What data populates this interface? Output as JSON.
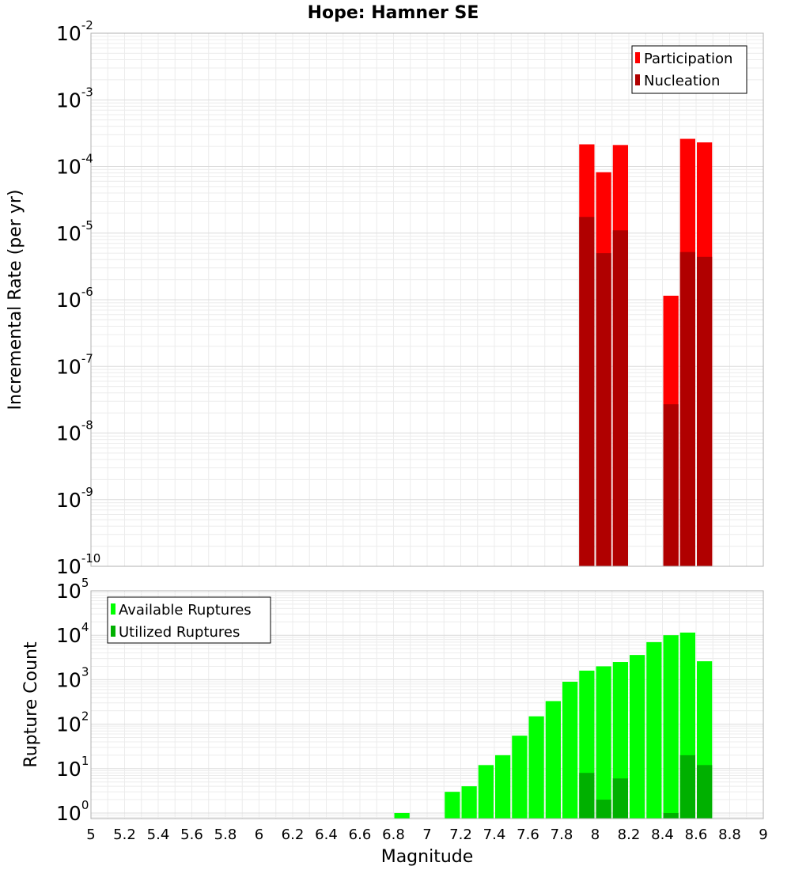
{
  "chart_data": [
    {
      "type": "bar",
      "title": "Hope: Hamner SE",
      "xlabel": "Magnitude",
      "ylabel": "Incremental Rate (per yr)",
      "yscale": "log",
      "ylim": [
        1e-10,
        0.01
      ],
      "xlim": [
        5,
        9
      ],
      "bar_width": 0.1,
      "legend_position": "top-right",
      "y_ticks": [
        {
          "base": "10",
          "exp": "-10"
        },
        {
          "base": "10",
          "exp": "-9"
        },
        {
          "base": "10",
          "exp": "-8"
        },
        {
          "base": "10",
          "exp": "-7"
        },
        {
          "base": "10",
          "exp": "-6"
        },
        {
          "base": "10",
          "exp": "-5"
        },
        {
          "base": "10",
          "exp": "-4"
        },
        {
          "base": "10",
          "exp": "-3"
        },
        {
          "base": "10",
          "exp": "-2"
        }
      ],
      "series": [
        {
          "name": "Participation",
          "color": "#ff0000",
          "x": [
            7.95,
            8.05,
            8.15,
            8.45,
            8.55,
            8.65
          ],
          "values": [
            0.000215,
            8.2e-05,
            0.00021,
            1.15e-06,
            0.00026,
            0.00023
          ]
        },
        {
          "name": "Nucleation",
          "color": "#b00000",
          "x": [
            7.95,
            8.05,
            8.15,
            8.45,
            8.55,
            8.65
          ],
          "values": [
            1.75e-05,
            5e-06,
            1.1e-05,
            2.7e-08,
            5.2e-06,
            4.4e-06
          ]
        }
      ]
    },
    {
      "type": "bar",
      "xlabel": "Magnitude",
      "ylabel": "Rupture Count",
      "yscale": "log",
      "ylim": [
        0.75,
        100000
      ],
      "xlim": [
        5,
        9
      ],
      "bar_width": 0.1,
      "legend_position": "top-left",
      "x_ticks": [
        "5",
        "5.2",
        "5.4",
        "5.6",
        "5.8",
        "6",
        "6.2",
        "6.4",
        "6.6",
        "6.8",
        "7",
        "7.2",
        "7.4",
        "7.6",
        "7.8",
        "8",
        "8.2",
        "8.4",
        "8.6",
        "8.8",
        "9"
      ],
      "y_ticks": [
        {
          "base": "10",
          "exp": "0"
        },
        {
          "base": "10",
          "exp": "1"
        },
        {
          "base": "10",
          "exp": "2"
        },
        {
          "base": "10",
          "exp": "3"
        },
        {
          "base": "10",
          "exp": "4"
        },
        {
          "base": "10",
          "exp": "5"
        }
      ],
      "series": [
        {
          "name": "Available Ruptures",
          "color": "#00ff00",
          "x": [
            6.85,
            7.15,
            7.25,
            7.35,
            7.45,
            7.55,
            7.65,
            7.75,
            7.85,
            7.95,
            8.05,
            8.15,
            8.25,
            8.35,
            8.45,
            8.55,
            8.65
          ],
          "values": [
            1,
            3,
            4,
            12,
            20,
            55,
            150,
            330,
            900,
            1600,
            2000,
            2500,
            3600,
            7000,
            10000,
            11500,
            2600
          ]
        },
        {
          "name": "Utilized Ruptures",
          "color": "#00b000",
          "x": [
            7.95,
            8.05,
            8.15,
            8.45,
            8.55,
            8.65
          ],
          "values": [
            8,
            2,
            6,
            1,
            20,
            12
          ]
        }
      ]
    }
  ]
}
